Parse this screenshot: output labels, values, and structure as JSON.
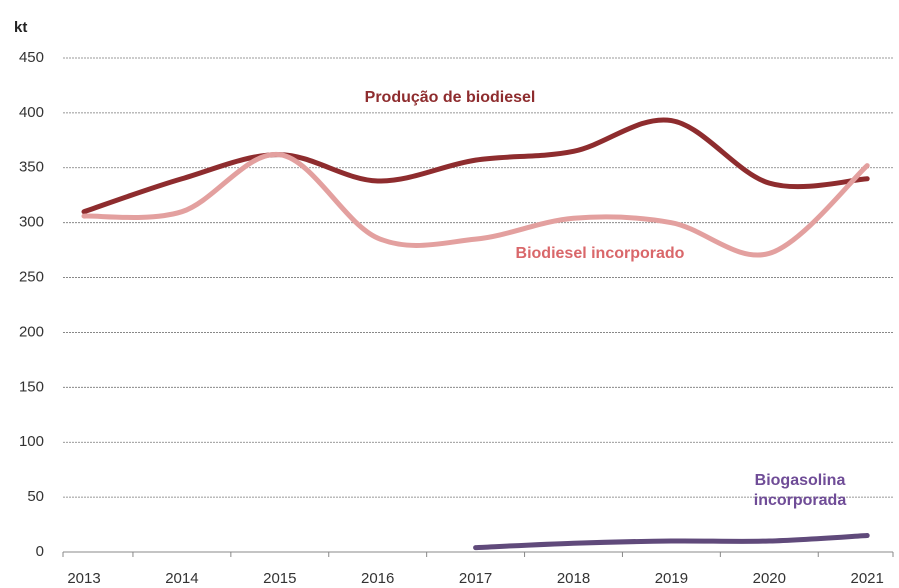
{
  "chart_data": {
    "type": "line",
    "y_axis_label": "kt",
    "categories": [
      "2013",
      "2014",
      "2015",
      "2016",
      "2017",
      "2018",
      "2019",
      "2020",
      "2021"
    ],
    "series": [
      {
        "name": "Produção de biodiesel",
        "color": "#8e2c2e",
        "label_color": "#8e2c2e",
        "values": [
          310,
          340,
          362,
          338,
          357,
          365,
          393,
          336,
          340
        ]
      },
      {
        "name": "Biodiesel incorporado",
        "color": "#e3a09f",
        "label_color": "#d9676a",
        "values": [
          306,
          310,
          362,
          286,
          285,
          304,
          300,
          272,
          352
        ]
      },
      {
        "name": "Biogasolina incorporada",
        "color": "#604a7b",
        "label_color": "#6f4c97",
        "values": [
          null,
          null,
          null,
          null,
          4,
          8,
          10,
          10,
          15
        ]
      }
    ],
    "ylim": [
      0,
      450
    ],
    "yticks": [
      0,
      50,
      100,
      150,
      200,
      250,
      300,
      350,
      400,
      450
    ],
    "grid": true,
    "smooth": true
  }
}
